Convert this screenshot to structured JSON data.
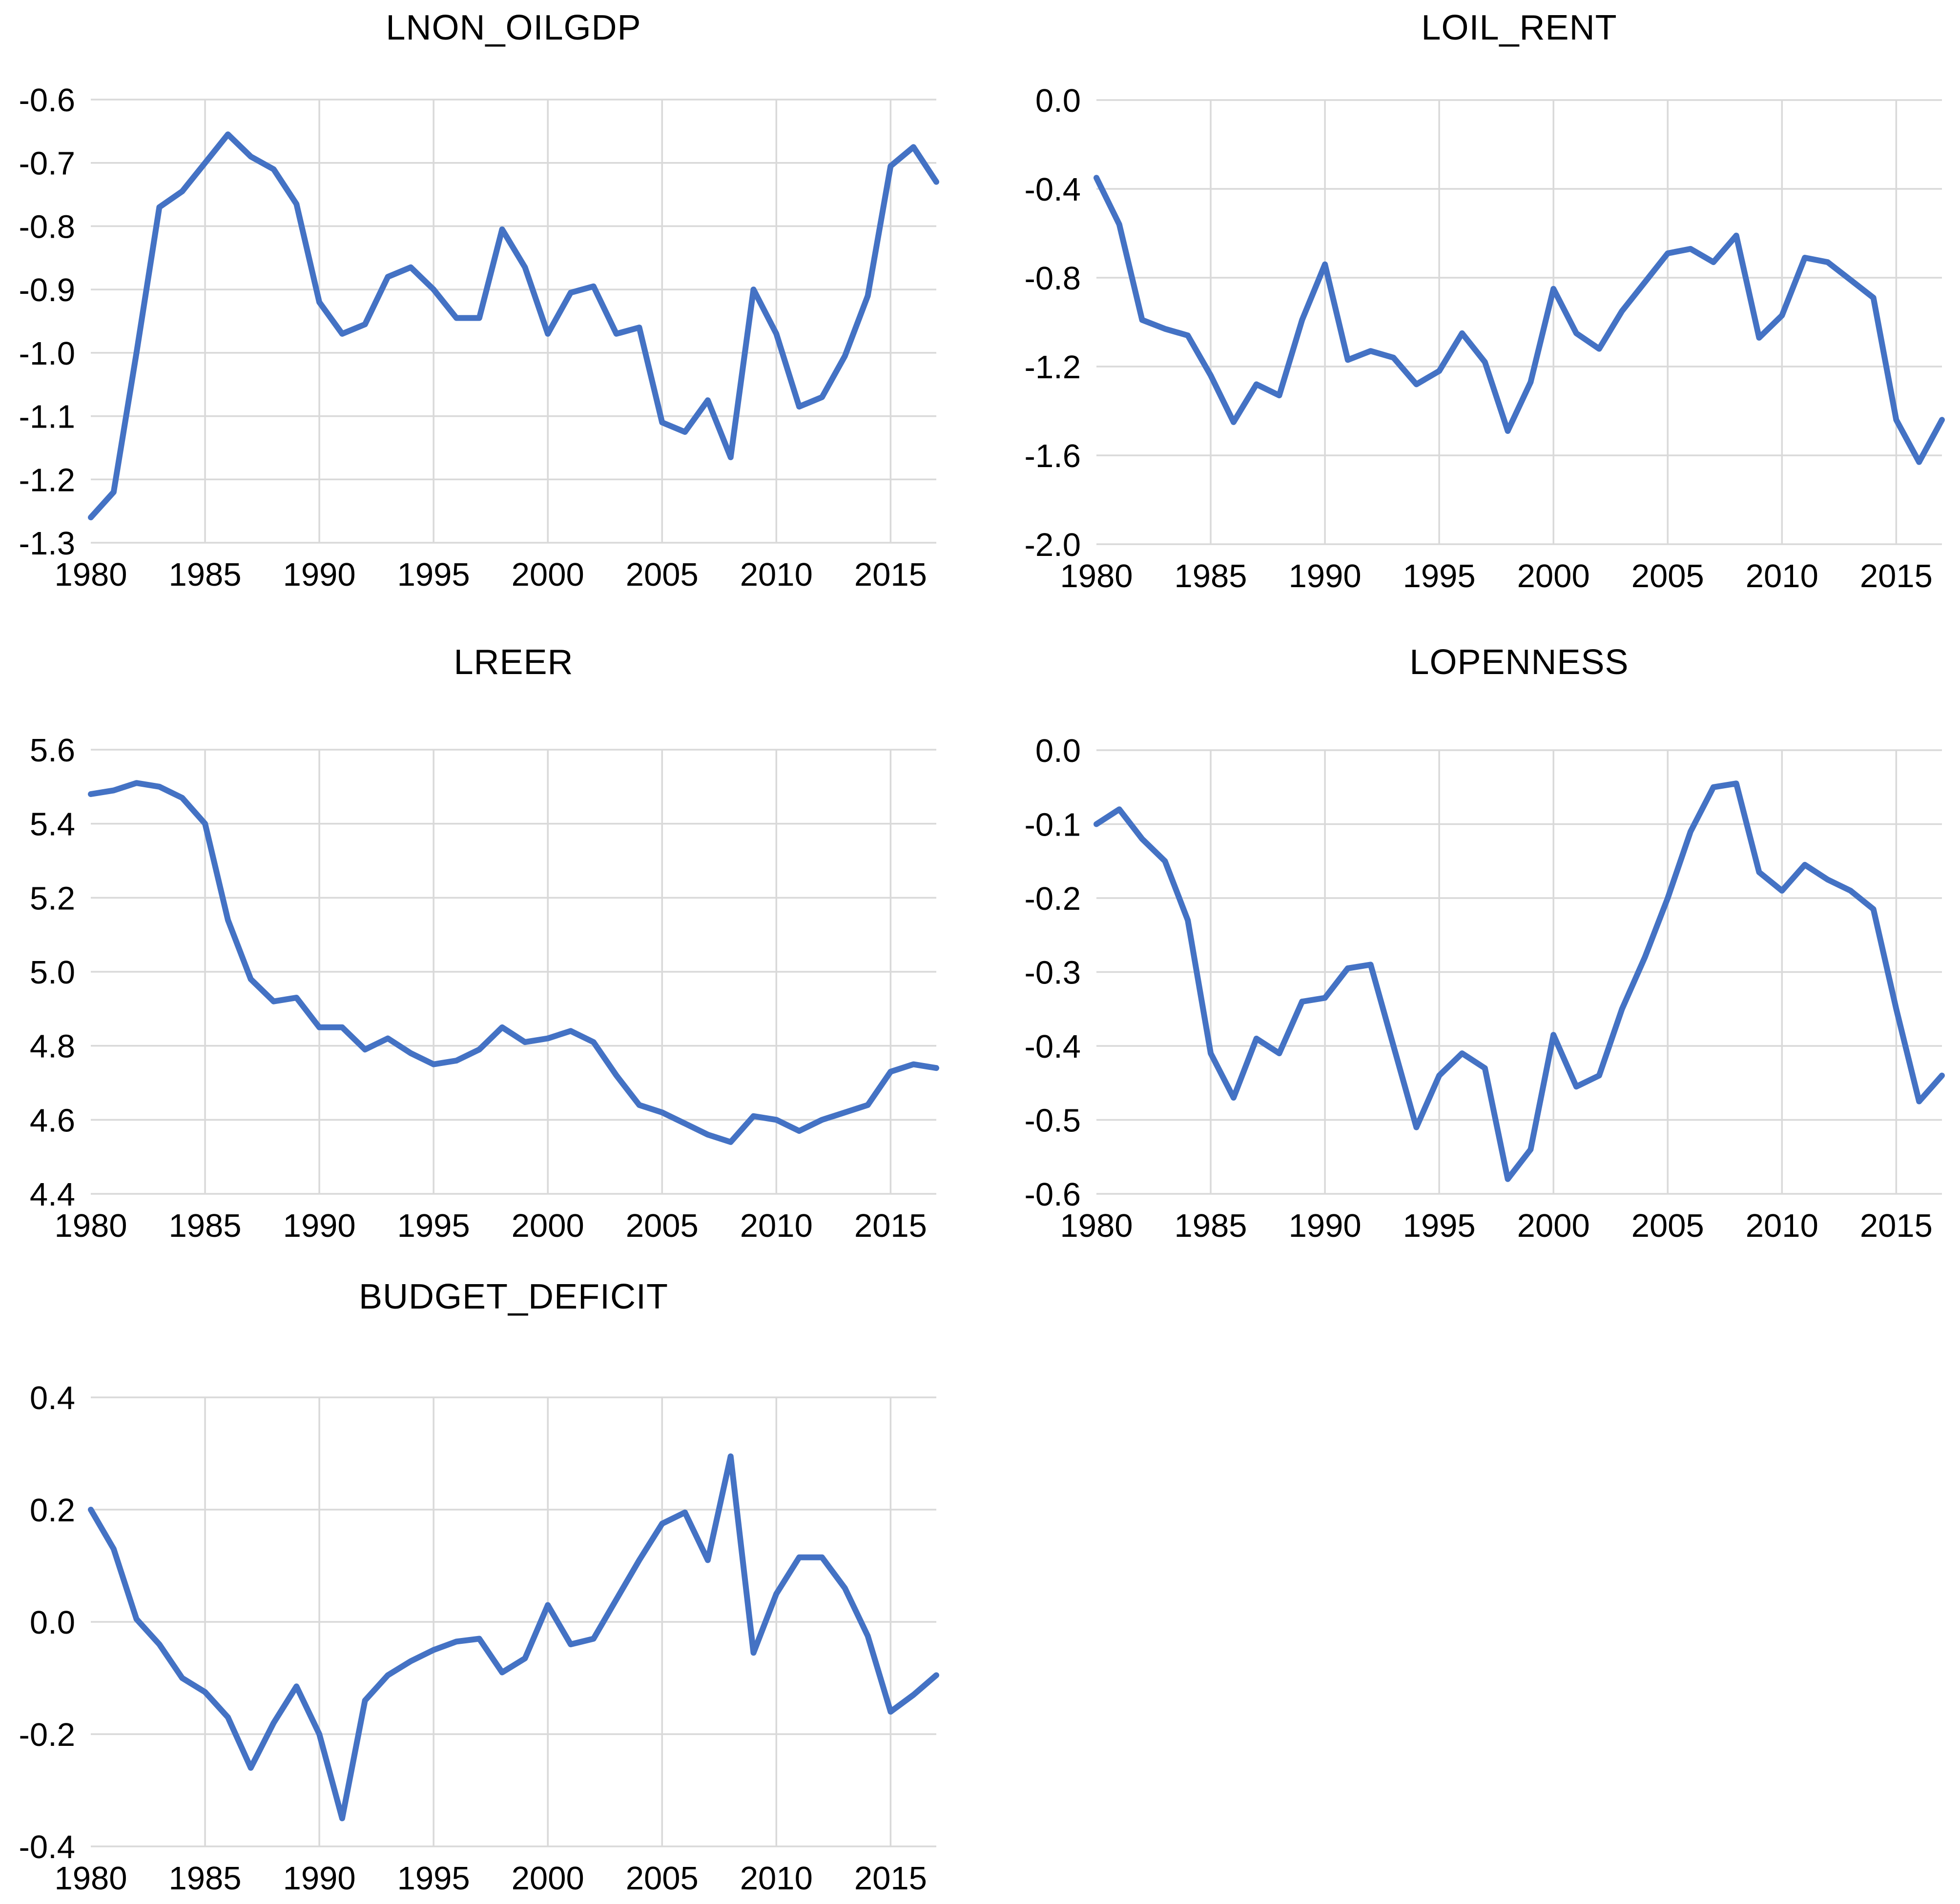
{
  "page": {
    "background": "#ffffff"
  },
  "colors": {
    "line": "#4472C4",
    "grid": "#D9D9D9",
    "text": "#000000"
  },
  "chart_data": [
    {
      "id": "lnon_oilgdp",
      "title": "LNON_OILGDP",
      "type": "line",
      "x": [
        1980,
        1981,
        1982,
        1983,
        1984,
        1985,
        1986,
        1987,
        1988,
        1989,
        1990,
        1991,
        1992,
        1993,
        1994,
        1995,
        1996,
        1997,
        1998,
        1999,
        2000,
        2001,
        2002,
        2003,
        2004,
        2005,
        2006,
        2007,
        2008,
        2009,
        2010,
        2011,
        2012,
        2013,
        2014,
        2015,
        2016,
        2017
      ],
      "values": [
        -1.26,
        -1.22,
        -1.0,
        -0.77,
        -0.745,
        -0.7,
        -0.655,
        -0.69,
        -0.71,
        -0.765,
        -0.92,
        -0.97,
        -0.955,
        -0.88,
        -0.865,
        -0.9,
        -0.945,
        -0.945,
        -0.805,
        -0.865,
        -0.97,
        -0.905,
        -0.895,
        -0.97,
        -0.96,
        -1.11,
        -1.125,
        -1.075,
        -1.165,
        -0.9,
        -0.97,
        -1.085,
        -1.07,
        -1.005,
        -0.91,
        -0.705,
        -0.675,
        -0.73
      ],
      "ylim": [
        -1.3,
        -0.6
      ],
      "ytick_step": 0.1,
      "xticks": [
        1980,
        1985,
        1990,
        1995,
        2000,
        2005,
        2010,
        2015
      ],
      "xlabel": "",
      "ylabel": "",
      "grid": true,
      "legend_position": "none"
    },
    {
      "id": "loil_rent",
      "title": "LOIL_RENT",
      "type": "line",
      "x": [
        1980,
        1981,
        1982,
        1983,
        1984,
        1985,
        1986,
        1987,
        1988,
        1989,
        1990,
        1991,
        1992,
        1993,
        1994,
        1995,
        1996,
        1997,
        1998,
        1999,
        2000,
        2001,
        2002,
        2003,
        2004,
        2005,
        2006,
        2007,
        2008,
        2009,
        2010,
        2011,
        2012,
        2013,
        2014,
        2015,
        2016,
        2017
      ],
      "values": [
        -0.35,
        -0.56,
        -0.99,
        -1.03,
        -1.06,
        -1.24,
        -1.45,
        -1.28,
        -1.33,
        -0.99,
        -0.74,
        -1.17,
        -1.13,
        -1.16,
        -1.28,
        -1.22,
        -1.05,
        -1.18,
        -1.49,
        -1.27,
        -0.85,
        -1.05,
        -1.12,
        -0.95,
        -0.82,
        -0.69,
        -0.67,
        -0.73,
        -0.61,
        -1.07,
        -0.97,
        -0.71,
        -0.73,
        -0.81,
        -0.89,
        -1.44,
        -1.63,
        -1.44
      ],
      "ylim": [
        -2.0,
        0.0
      ],
      "ytick_step": 0.4,
      "xticks": [
        1980,
        1985,
        1990,
        1995,
        2000,
        2005,
        2010,
        2015
      ],
      "xlabel": "",
      "ylabel": "",
      "grid": true,
      "legend_position": "none"
    },
    {
      "id": "lreer",
      "title": "LREER",
      "type": "line",
      "x": [
        1980,
        1981,
        1982,
        1983,
        1984,
        1985,
        1986,
        1987,
        1988,
        1989,
        1990,
        1991,
        1992,
        1993,
        1994,
        1995,
        1996,
        1997,
        1998,
        1999,
        2000,
        2001,
        2002,
        2003,
        2004,
        2005,
        2006,
        2007,
        2008,
        2009,
        2010,
        2011,
        2012,
        2013,
        2014,
        2015,
        2016,
        2017
      ],
      "values": [
        5.48,
        5.49,
        5.51,
        5.5,
        5.47,
        5.4,
        5.14,
        4.98,
        4.92,
        4.93,
        4.85,
        4.85,
        4.79,
        4.82,
        4.78,
        4.75,
        4.76,
        4.79,
        4.85,
        4.81,
        4.82,
        4.84,
        4.81,
        4.72,
        4.64,
        4.62,
        4.59,
        4.56,
        4.54,
        4.61,
        4.6,
        4.57,
        4.6,
        4.62,
        4.64,
        4.73,
        4.75,
        4.74
      ],
      "ylim": [
        4.4,
        5.6
      ],
      "ytick_step": 0.2,
      "xticks": [
        1980,
        1985,
        1990,
        1995,
        2000,
        2005,
        2010,
        2015
      ],
      "xlabel": "",
      "ylabel": "",
      "grid": true,
      "legend_position": "none"
    },
    {
      "id": "lopenness",
      "title": "LOPENNESS",
      "type": "line",
      "x": [
        1980,
        1981,
        1982,
        1983,
        1984,
        1985,
        1986,
        1987,
        1988,
        1989,
        1990,
        1991,
        1992,
        1993,
        1994,
        1995,
        1996,
        1997,
        1998,
        1999,
        2000,
        2001,
        2002,
        2003,
        2004,
        2005,
        2006,
        2007,
        2008,
        2009,
        2010,
        2011,
        2012,
        2013,
        2014,
        2015,
        2016,
        2017
      ],
      "values": [
        -0.1,
        -0.08,
        -0.12,
        -0.15,
        -0.23,
        -0.41,
        -0.47,
        -0.39,
        -0.41,
        -0.34,
        -0.335,
        -0.295,
        -0.29,
        -0.4,
        -0.51,
        -0.44,
        -0.41,
        -0.43,
        -0.58,
        -0.54,
        -0.385,
        -0.455,
        -0.44,
        -0.35,
        -0.28,
        -0.2,
        -0.11,
        -0.05,
        -0.045,
        -0.165,
        -0.19,
        -0.155,
        -0.175,
        -0.19,
        -0.215,
        -0.35,
        -0.475,
        -0.44
      ],
      "ylim": [
        -0.6,
        0.0
      ],
      "ytick_step": 0.1,
      "xticks": [
        1980,
        1985,
        1990,
        1995,
        2000,
        2005,
        2010,
        2015
      ],
      "xlabel": "",
      "ylabel": "",
      "grid": true,
      "legend_position": "none"
    },
    {
      "id": "budget_deficit",
      "title": "BUDGET_DEFICIT",
      "type": "line",
      "x": [
        1980,
        1981,
        1982,
        1983,
        1984,
        1985,
        1986,
        1987,
        1988,
        1989,
        1990,
        1991,
        1992,
        1993,
        1994,
        1995,
        1996,
        1997,
        1998,
        1999,
        2000,
        2001,
        2002,
        2003,
        2004,
        2005,
        2006,
        2007,
        2008,
        2009,
        2010,
        2011,
        2012,
        2013,
        2014,
        2015,
        2016,
        2017
      ],
      "values": [
        0.2,
        0.13,
        0.005,
        -0.04,
        -0.1,
        -0.125,
        -0.17,
        -0.26,
        -0.18,
        -0.115,
        -0.2,
        -0.35,
        -0.14,
        -0.095,
        -0.07,
        -0.05,
        -0.035,
        -0.03,
        -0.09,
        -0.065,
        0.03,
        -0.04,
        -0.03,
        0.04,
        0.11,
        0.175,
        0.195,
        0.11,
        0.295,
        -0.055,
        0.05,
        0.115,
        0.115,
        0.06,
        -0.025,
        -0.16,
        -0.13,
        -0.095
      ],
      "ylim": [
        -0.4,
        0.4
      ],
      "ytick_step": 0.2,
      "xticks": [
        1980,
        1985,
        1990,
        1995,
        2000,
        2005,
        2010,
        2015
      ],
      "xlabel": "",
      "ylabel": "",
      "grid": true,
      "legend_position": "none"
    }
  ]
}
